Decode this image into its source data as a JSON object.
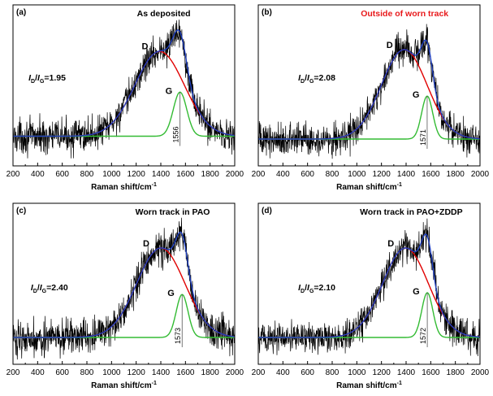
{
  "chart_data": [
    {
      "panel_label": "(a)",
      "title": "As deposited",
      "title_color": "#000000",
      "type": "line",
      "xlabel": "Raman shift/cm",
      "xlabel_sup": "-1",
      "xlim": [
        200,
        2000
      ],
      "xticks": [
        200,
        400,
        600,
        800,
        1000,
        1200,
        1400,
        1600,
        1800,
        2000
      ],
      "ratio_label": {
        "I": "I",
        "D": "D",
        "slash": "/",
        "G": "G",
        "value": "=1.95"
      },
      "peaks": {
        "D": {
          "position": 1390,
          "label": "D"
        },
        "G": {
          "position": 1556,
          "label": "G"
        }
      },
      "g_position_label": "1556",
      "series": [
        {
          "role": "raw-spectrum",
          "color": "#000000"
        },
        {
          "role": "D-band-fit",
          "color": "#e00000"
        },
        {
          "role": "G-band-fit",
          "color": "#33bb33"
        },
        {
          "role": "cumulative-fit",
          "color": "#1f3fbf"
        }
      ],
      "model": {
        "baseline": 0,
        "d_center": 1390,
        "d_width": 200,
        "d_height": 1.0,
        "g_center": 1556,
        "g_width": 55,
        "g_height": 0.52,
        "noise": 0.14,
        "ymin": -0.35,
        "ymax": 1.55
      }
    },
    {
      "panel_label": "(b)",
      "title": "Outside of worn track",
      "title_color": "#e8191b",
      "type": "line",
      "xlabel": "Raman shift/cm",
      "xlabel_sup": "-1",
      "xlim": [
        200,
        2000
      ],
      "xticks": [
        200,
        400,
        600,
        800,
        1000,
        1200,
        1400,
        1600,
        1800,
        2000
      ],
      "ratio_label": {
        "I": "I",
        "D": "D",
        "slash": "/",
        "G": "G",
        "value": "=2.08"
      },
      "peaks": {
        "D": {
          "position": 1385,
          "label": "D"
        },
        "G": {
          "position": 1571,
          "label": "G"
        }
      },
      "g_position_label": "1571",
      "series": [
        {
          "role": "raw-spectrum",
          "color": "#000000"
        },
        {
          "role": "D-band-fit",
          "color": "#e00000"
        },
        {
          "role": "G-band-fit",
          "color": "#33bb33"
        },
        {
          "role": "cumulative-fit",
          "color": "#1f3fbf"
        }
      ],
      "model": {
        "baseline": 0,
        "d_center": 1385,
        "d_width": 185,
        "d_height": 1.0,
        "g_center": 1571,
        "g_width": 45,
        "g_height": 0.48,
        "noise": 0.13,
        "ymin": -0.3,
        "ymax": 1.5
      }
    },
    {
      "panel_label": "(c)",
      "title": "Worn track in PAO",
      "title_color": "#000000",
      "type": "line",
      "xlabel": "Raman shift/cm",
      "xlabel_sup": "-1",
      "xlim": [
        200,
        2000
      ],
      "xticks": [
        200,
        400,
        600,
        800,
        1000,
        1200,
        1400,
        1600,
        1800,
        2000
      ],
      "ratio_label": {
        "I": "I",
        "D": "D",
        "slash": "/",
        "G": "G",
        "value": "=2.40"
      },
      "peaks": {
        "D": {
          "position": 1400,
          "label": "D"
        },
        "G": {
          "position": 1573,
          "label": "G"
        }
      },
      "g_position_label": "1573",
      "series": [
        {
          "role": "raw-spectrum",
          "color": "#000000"
        },
        {
          "role": "D-band-fit",
          "color": "#e00000"
        },
        {
          "role": "G-band-fit",
          "color": "#33bb33"
        },
        {
          "role": "cumulative-fit",
          "color": "#1f3fbf"
        }
      ],
      "model": {
        "baseline": 0,
        "d_center": 1400,
        "d_width": 195,
        "d_height": 1.0,
        "g_center": 1573,
        "g_width": 48,
        "g_height": 0.48,
        "noise": 0.14,
        "ymin": -0.3,
        "ymax": 1.5
      }
    },
    {
      "panel_label": "(d)",
      "title": "Worn track in PAO+ZDDP",
      "title_color": "#000000",
      "type": "line",
      "xlabel": "Raman shift/cm",
      "xlabel_sup": "-1",
      "xlim": [
        200,
        2000
      ],
      "xticks": [
        200,
        400,
        600,
        800,
        1000,
        1200,
        1400,
        1600,
        1800,
        2000
      ],
      "ratio_label": {
        "I": "I",
        "D": "D",
        "slash": "/",
        "G": "G",
        "value": "=2.10"
      },
      "peaks": {
        "D": {
          "position": 1395,
          "label": "D"
        },
        "G": {
          "position": 1572,
          "label": "G"
        }
      },
      "g_position_label": "1572",
      "series": [
        {
          "role": "raw-spectrum",
          "color": "#000000"
        },
        {
          "role": "D-band-fit",
          "color": "#e00000"
        },
        {
          "role": "G-band-fit",
          "color": "#33bb33"
        },
        {
          "role": "cumulative-fit",
          "color": "#1f3fbf"
        }
      ],
      "model": {
        "baseline": 0,
        "d_center": 1395,
        "d_width": 185,
        "d_height": 1.0,
        "g_center": 1572,
        "g_width": 45,
        "g_height": 0.5,
        "noise": 0.13,
        "ymin": -0.3,
        "ymax": 1.5
      }
    }
  ]
}
